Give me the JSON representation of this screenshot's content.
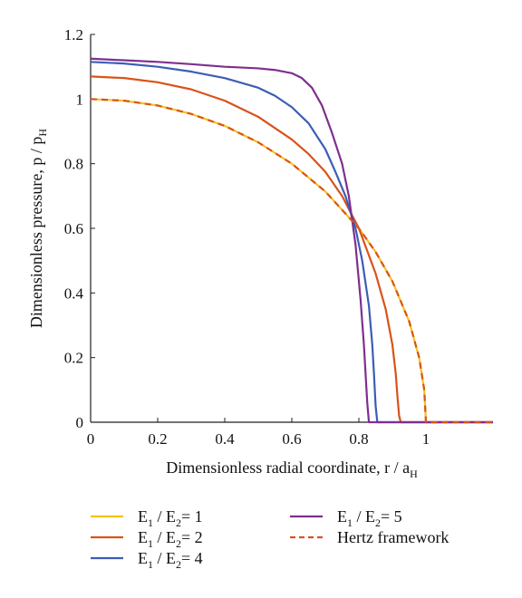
{
  "chart_data": {
    "type": "line",
    "xlabel": "Dimensionless radial coordinate, r / a",
    "xlabel_sub": "H",
    "ylabel": "Dimensionless pressure, p / p",
    "ylabel_sub": "H",
    "xlim": [
      0,
      1.2
    ],
    "ylim": [
      0,
      1.2
    ],
    "xticks": [
      {
        "value": 0,
        "label": "0"
      },
      {
        "value": 0.2,
        "label": "0.2"
      },
      {
        "value": 0.4,
        "label": "0.4"
      },
      {
        "value": 0.6,
        "label": "0.6"
      },
      {
        "value": 0.8,
        "label": "0.8"
      },
      {
        "value": 1,
        "label": "1"
      }
    ],
    "yticks": [
      {
        "value": 0,
        "label": "0"
      },
      {
        "value": 0.2,
        "label": "0.2"
      },
      {
        "value": 0.4,
        "label": "0.4"
      },
      {
        "value": 0.6,
        "label": "0.6"
      },
      {
        "value": 0.8,
        "label": "0.8"
      },
      {
        "value": 1,
        "label": "1"
      },
      {
        "value": 1.2,
        "label": "1.2"
      }
    ],
    "grid": false,
    "legend_position": "bottom",
    "series": [
      {
        "name": "E1 / E2= 1",
        "legend": {
          "a": "E",
          "a_sub": "1",
          "b": " / E",
          "b_sub": "2",
          "c": "= 1"
        },
        "color": "#F2C318",
        "dash": false,
        "x": [
          0,
          0.1,
          0.2,
          0.3,
          0.4,
          0.5,
          0.6,
          0.7,
          0.8,
          0.85,
          0.9,
          0.95,
          0.98,
          0.995,
          1.0,
          1.2
        ],
        "y": [
          1.0,
          0.995,
          0.98,
          0.954,
          0.917,
          0.866,
          0.8,
          0.714,
          0.6,
          0.527,
          0.436,
          0.312,
          0.199,
          0.1,
          0,
          0
        ]
      },
      {
        "name": "E1 / E2= 2",
        "legend": {
          "a": "E",
          "a_sub": "1",
          "b": " / E",
          "b_sub": "2",
          "c": "= 2"
        },
        "color": "#D95319",
        "dash": false,
        "x": [
          0,
          0.1,
          0.2,
          0.3,
          0.4,
          0.5,
          0.6,
          0.65,
          0.7,
          0.75,
          0.8,
          0.85,
          0.88,
          0.9,
          0.91,
          0.915,
          0.92,
          0.925,
          1.2
        ],
        "y": [
          1.07,
          1.065,
          1.052,
          1.03,
          0.995,
          0.945,
          0.875,
          0.83,
          0.775,
          0.7,
          0.6,
          0.46,
          0.35,
          0.24,
          0.15,
          0.08,
          0.02,
          0,
          0
        ]
      },
      {
        "name": "E1 / E2= 4",
        "legend": {
          "a": "E",
          "a_sub": "1",
          "b": " / E",
          "b_sub": "2",
          "c": "= 4"
        },
        "color": "#3B5EB4",
        "dash": false,
        "x": [
          0,
          0.1,
          0.2,
          0.3,
          0.4,
          0.5,
          0.55,
          0.6,
          0.65,
          0.7,
          0.73,
          0.76,
          0.79,
          0.81,
          0.83,
          0.84,
          0.845,
          0.85,
          0.855,
          1.2
        ],
        "y": [
          1.115,
          1.11,
          1.1,
          1.085,
          1.065,
          1.035,
          1.01,
          0.975,
          0.925,
          0.845,
          0.775,
          0.7,
          0.6,
          0.5,
          0.36,
          0.24,
          0.15,
          0.05,
          0,
          0
        ]
      },
      {
        "name": "E1 / E2= 5",
        "legend": {
          "a": "E",
          "a_sub": "1",
          "b": " / E",
          "b_sub": "2",
          "c": "= 5"
        },
        "color": "#7E2F8E",
        "dash": false,
        "x": [
          0,
          0.1,
          0.2,
          0.3,
          0.4,
          0.5,
          0.55,
          0.6,
          0.63,
          0.66,
          0.69,
          0.72,
          0.75,
          0.77,
          0.79,
          0.805,
          0.815,
          0.82,
          0.825,
          0.83,
          1.2
        ],
        "y": [
          1.125,
          1.12,
          1.115,
          1.108,
          1.1,
          1.095,
          1.09,
          1.08,
          1.065,
          1.035,
          0.98,
          0.895,
          0.8,
          0.7,
          0.55,
          0.38,
          0.24,
          0.15,
          0.06,
          0,
          0
        ]
      },
      {
        "name": "Hertz framework",
        "legend": {
          "a": "Hertz framework",
          "a_sub": "",
          "b": "",
          "b_sub": "",
          "c": ""
        },
        "color": "#D95319",
        "dash": true,
        "x": [
          0,
          0.1,
          0.2,
          0.3,
          0.4,
          0.5,
          0.6,
          0.7,
          0.8,
          0.85,
          0.9,
          0.95,
          0.98,
          0.995,
          1.0,
          1.2
        ],
        "y": [
          1.0,
          0.995,
          0.98,
          0.954,
          0.917,
          0.866,
          0.8,
          0.714,
          0.6,
          0.527,
          0.436,
          0.312,
          0.199,
          0.1,
          0,
          0
        ]
      }
    ]
  }
}
